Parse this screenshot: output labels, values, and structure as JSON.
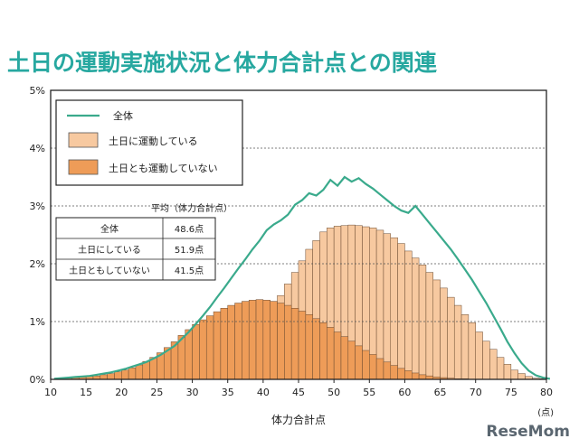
{
  "title": "土日の運動実施状況と体力合計点との関連",
  "watermark": "ReseMom",
  "colors": {
    "title": "#27a8a0",
    "line": "#3aaa8c",
    "light": "#f7c9a0",
    "dark": "#ee9c58",
    "frame": "#222222"
  },
  "chart_data": {
    "type": "bar",
    "xlabel": "体力合計点",
    "xunit": "(点)",
    "ylabel": "",
    "xlim": [
      10,
      80
    ],
    "ylim": [
      0,
      5
    ],
    "y_tick_labels": [
      "0%",
      "1%",
      "2%",
      "3%",
      "4%",
      "5%"
    ],
    "x_tick_labels": [
      "10",
      "15",
      "20",
      "25",
      "30",
      "35",
      "40",
      "45",
      "50",
      "55",
      "60",
      "65",
      "70",
      "75",
      "80"
    ],
    "legend": {
      "position": "top-left",
      "line_label": "全体",
      "items": [
        "土日に運動している",
        "土日とも運動していない"
      ]
    },
    "mean_table": {
      "title": "平均（体力合計点）",
      "rows": [
        {
          "label": "全体",
          "value": "48.6点"
        },
        {
          "label": "土日にしている",
          "value": "51.9点"
        },
        {
          "label": "土日ともしていない",
          "value": "41.5点"
        }
      ]
    },
    "x": [
      8,
      9,
      10,
      11,
      12,
      13,
      14,
      15,
      16,
      17,
      18,
      19,
      20,
      21,
      22,
      23,
      24,
      25,
      26,
      27,
      28,
      29,
      30,
      31,
      32,
      33,
      34,
      35,
      36,
      37,
      38,
      39,
      40,
      41,
      42,
      43,
      44,
      45,
      46,
      47,
      48,
      49,
      50,
      51,
      52,
      53,
      54,
      55,
      56,
      57,
      58,
      59,
      60,
      61,
      62,
      63,
      64,
      65,
      66,
      67,
      68,
      69,
      70,
      71,
      72,
      73,
      74,
      75,
      76,
      77,
      78,
      79,
      80
    ],
    "series": [
      {
        "name": "全体",
        "kind": "line",
        "values": [
          0,
          0,
          0.01,
          0.02,
          0.03,
          0.04,
          0.05,
          0.06,
          0.08,
          0.1,
          0.12,
          0.15,
          0.18,
          0.22,
          0.26,
          0.3,
          0.36,
          0.42,
          0.5,
          0.58,
          0.7,
          0.82,
          0.96,
          1.1,
          1.25,
          1.42,
          1.58,
          1.75,
          1.92,
          2.08,
          2.25,
          2.4,
          2.58,
          2.68,
          2.75,
          2.85,
          3.02,
          3.1,
          3.22,
          3.18,
          3.28,
          3.45,
          3.35,
          3.5,
          3.42,
          3.48,
          3.38,
          3.3,
          3.2,
          3.1,
          3.0,
          2.92,
          2.88,
          3.0,
          2.85,
          2.7,
          2.55,
          2.4,
          2.25,
          2.08,
          1.9,
          1.72,
          1.52,
          1.32,
          1.1,
          0.88,
          0.65,
          0.45,
          0.28,
          0.15,
          0.07,
          0.03,
          0.01
        ]
      },
      {
        "name": "土日に運動している",
        "kind": "bar",
        "values": [
          0,
          0,
          0,
          0,
          0,
          0,
          0.01,
          0.01,
          0.01,
          0.02,
          0.02,
          0.03,
          0.04,
          0.05,
          0.06,
          0.07,
          0.08,
          0.1,
          0.12,
          0.14,
          0.17,
          0.2,
          0.24,
          0.28,
          0.33,
          0.38,
          0.45,
          0.52,
          0.6,
          0.7,
          0.82,
          0.96,
          1.1,
          1.28,
          1.45,
          1.65,
          1.85,
          2.05,
          2.25,
          2.4,
          2.55,
          2.62,
          2.65,
          2.66,
          2.67,
          2.66,
          2.64,
          2.62,
          2.58,
          2.52,
          2.45,
          2.35,
          2.22,
          2.1,
          1.98,
          1.85,
          1.72,
          1.58,
          1.42,
          1.28,
          1.12,
          0.98,
          0.82,
          0.66,
          0.52,
          0.38,
          0.26,
          0.16,
          0.1,
          0.05,
          0.02,
          0.01,
          0
        ]
      },
      {
        "name": "土日とも運動していない",
        "kind": "bar",
        "values": [
          0,
          0,
          0,
          0.01,
          0.02,
          0.03,
          0.04,
          0.05,
          0.06,
          0.08,
          0.1,
          0.13,
          0.16,
          0.2,
          0.25,
          0.31,
          0.38,
          0.46,
          0.55,
          0.65,
          0.76,
          0.86,
          0.95,
          1.03,
          1.1,
          1.17,
          1.23,
          1.28,
          1.32,
          1.35,
          1.37,
          1.38,
          1.37,
          1.35,
          1.32,
          1.28,
          1.23,
          1.18,
          1.12,
          1.05,
          0.98,
          0.9,
          0.82,
          0.74,
          0.66,
          0.58,
          0.5,
          0.43,
          0.36,
          0.3,
          0.24,
          0.19,
          0.15,
          0.11,
          0.08,
          0.06,
          0.04,
          0.03,
          0.02,
          0.01,
          0.01,
          0,
          0,
          0,
          0,
          0,
          0,
          0,
          0,
          0,
          0,
          0,
          0
        ]
      }
    ]
  }
}
